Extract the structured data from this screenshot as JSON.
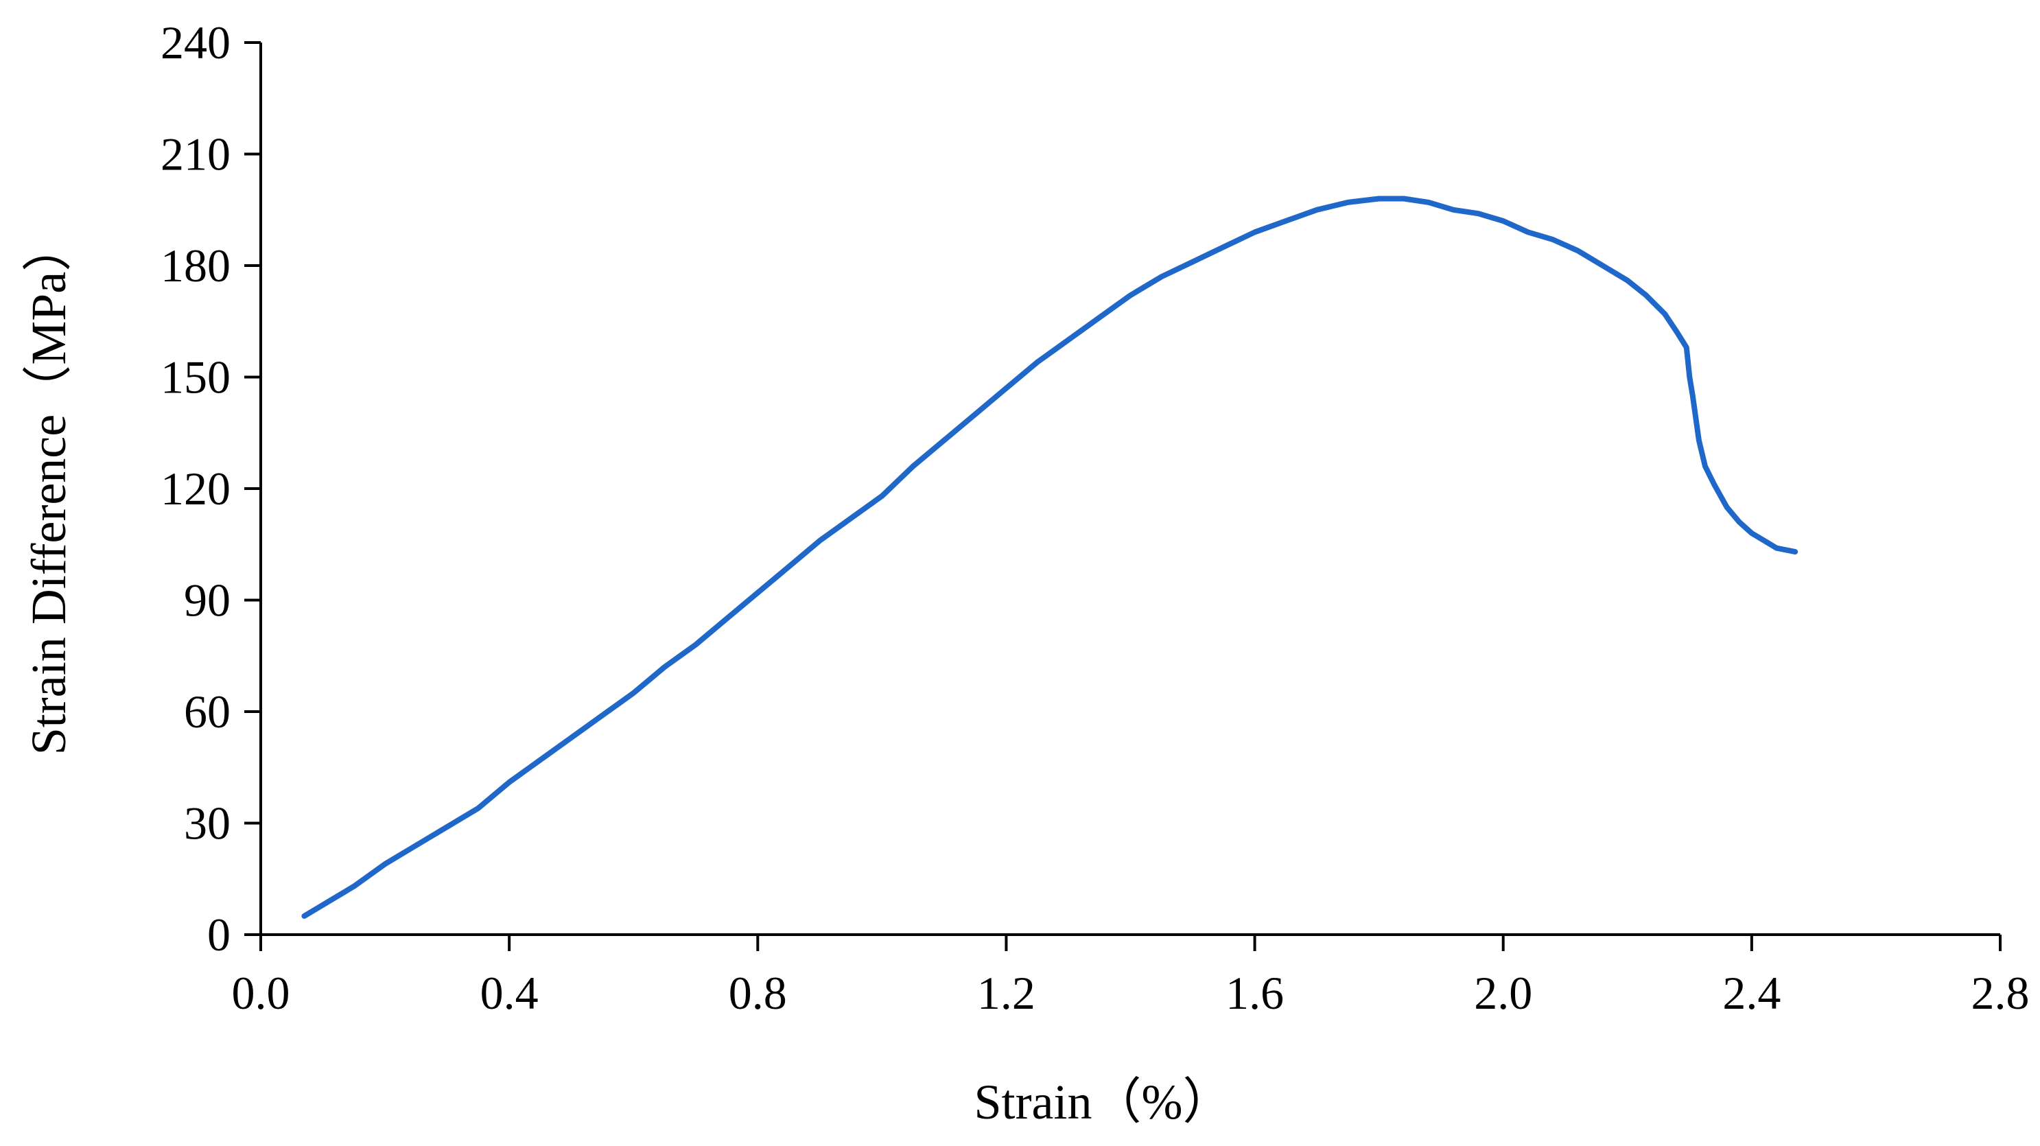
{
  "chart_data": {
    "type": "line",
    "title": "",
    "xlabel": "Strain（%）",
    "ylabel": "Strain Difference（MPa）",
    "xlim": [
      0.0,
      2.8
    ],
    "ylim": [
      0,
      240
    ],
    "xticks": [
      0.0,
      0.4,
      0.8,
      1.2,
      1.6,
      2.0,
      2.4,
      2.8
    ],
    "xtick_labels": [
      "0.0",
      "0.4",
      "0.8",
      "1.2",
      "1.6",
      "2.0",
      "2.4",
      "2.8"
    ],
    "yticks": [
      0,
      30,
      60,
      90,
      120,
      150,
      180,
      210,
      240
    ],
    "ytick_labels": [
      "0",
      "30",
      "60",
      "90",
      "120",
      "150",
      "180",
      "210",
      "240"
    ],
    "grid": false,
    "legend": "none",
    "colors": {
      "series": "#1f68c9",
      "axis": "#000000",
      "background": "#ffffff"
    },
    "series": [
      {
        "x": [
          0.07,
          0.1,
          0.15,
          0.2,
          0.25,
          0.3,
          0.35,
          0.4,
          0.45,
          0.5,
          0.55,
          0.6,
          0.65,
          0.7,
          0.75,
          0.8,
          0.85,
          0.9,
          0.95,
          1.0,
          1.05,
          1.1,
          1.15,
          1.2,
          1.25,
          1.3,
          1.35,
          1.4,
          1.45,
          1.5,
          1.55,
          1.6,
          1.65,
          1.7,
          1.75,
          1.8,
          1.84,
          1.88,
          1.92,
          1.96,
          2.0,
          2.04,
          2.08,
          2.12,
          2.16,
          2.2,
          2.23,
          2.26,
          2.28,
          2.295,
          2.3,
          2.305,
          2.315,
          2.325,
          2.34,
          2.36,
          2.38,
          2.4,
          2.42,
          2.44,
          2.47
        ],
        "y": [
          5,
          8,
          13,
          19,
          24,
          29,
          34,
          41,
          47,
          53,
          59,
          65,
          72,
          78,
          85,
          92,
          99,
          106,
          112,
          118,
          126,
          133,
          140,
          147,
          154,
          160,
          166,
          172,
          177,
          181,
          185,
          189,
          192,
          195,
          197,
          198,
          198,
          197,
          195,
          194,
          192,
          189,
          187,
          184,
          180,
          176,
          172,
          167,
          162,
          158,
          150,
          145,
          133,
          126,
          121,
          115,
          111,
          108,
          106,
          104,
          103
        ]
      }
    ]
  }
}
